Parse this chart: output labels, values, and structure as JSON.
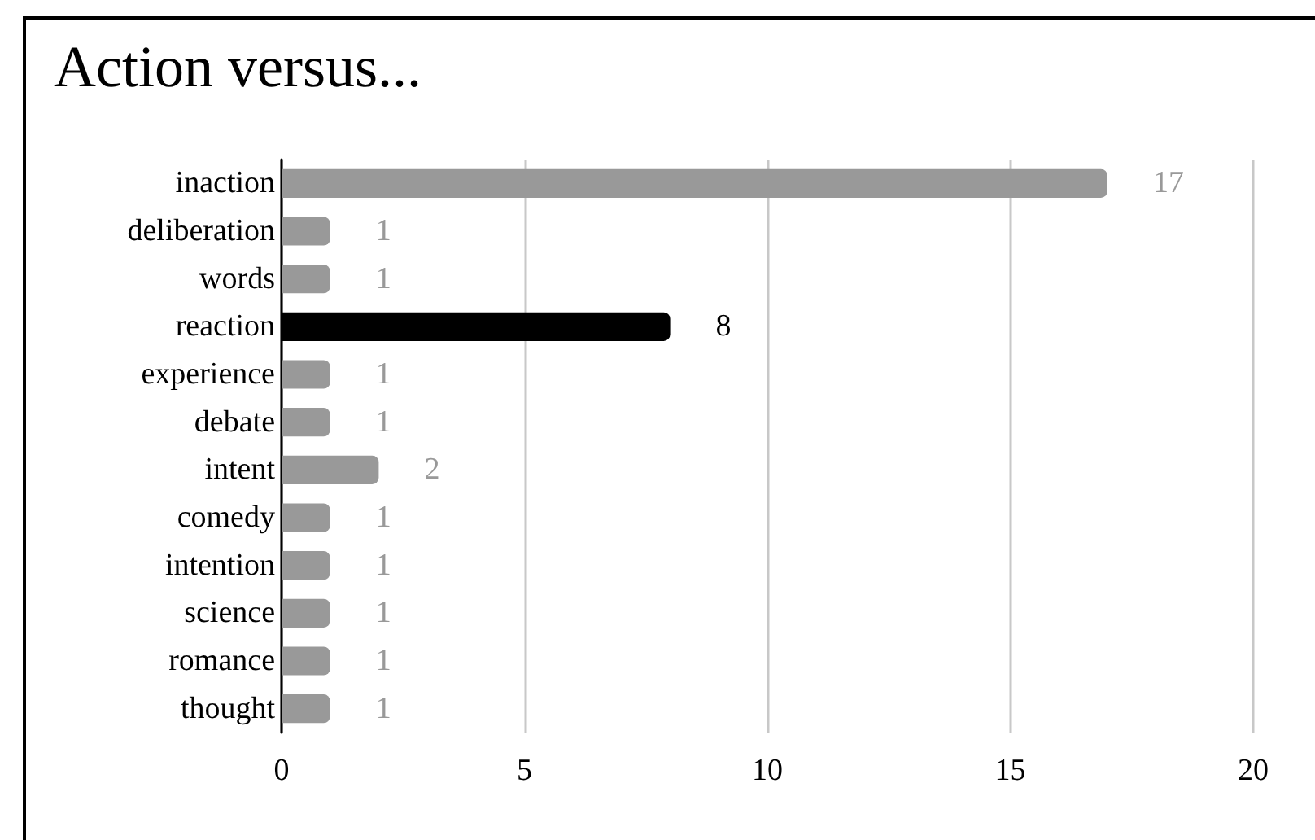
{
  "chart_data": {
    "type": "bar",
    "orientation": "horizontal",
    "title": "Action versus...",
    "categories": [
      "inaction",
      "deliberation",
      "words",
      "reaction",
      "experience",
      "debate",
      "intent",
      "comedy",
      "intention",
      "science",
      "romance",
      "thought"
    ],
    "values": [
      17,
      1,
      1,
      8,
      1,
      1,
      2,
      1,
      1,
      1,
      1,
      1
    ],
    "colors": [
      "#999999",
      "#999999",
      "#999999",
      "#000000",
      "#999999",
      "#999999",
      "#999999",
      "#999999",
      "#999999",
      "#999999",
      "#999999",
      "#999999"
    ],
    "xlim": [
      0,
      20
    ],
    "xticks": [
      0,
      5,
      10,
      15,
      20
    ],
    "grid": "x",
    "data_labels": true
  }
}
